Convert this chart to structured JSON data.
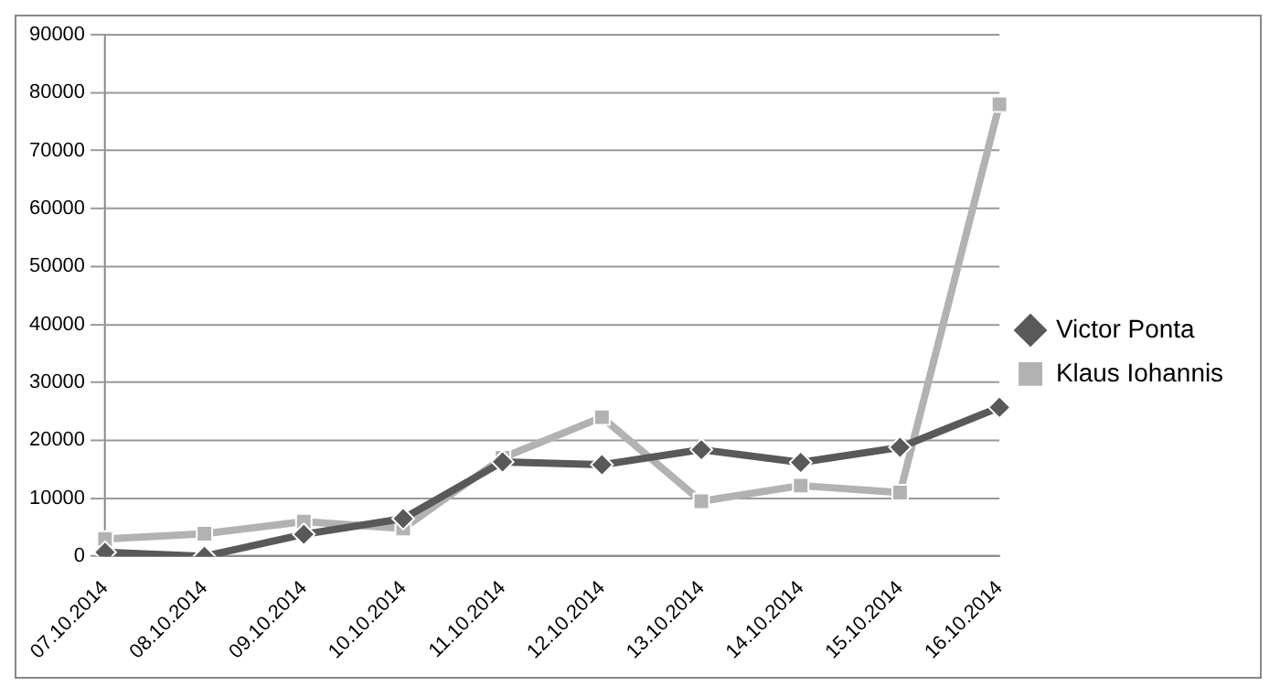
{
  "chart_data": {
    "type": "line",
    "categories": [
      "07.10.2014",
      "08.10.2014",
      "09.10.2014",
      "10.10.2014",
      "11.10.2014",
      "12.10.2014",
      "13.10.2014",
      "14.10.2014",
      "15.10.2014",
      "16.10.2014"
    ],
    "series": [
      {
        "name": "Victor Ponta",
        "color": "#595959",
        "marker": "diamond",
        "values": [
          700,
          0,
          3800,
          6500,
          16300,
          15800,
          18400,
          16200,
          18800,
          25700
        ]
      },
      {
        "name": "Klaus Iohannis",
        "color": "#b2b2b2",
        "marker": "square",
        "values": [
          3000,
          3900,
          6000,
          4800,
          17000,
          24000,
          9500,
          12200,
          11000,
          78000
        ]
      }
    ],
    "ylim": [
      0,
      90000
    ],
    "yticks": [
      0,
      10000,
      20000,
      30000,
      40000,
      50000,
      60000,
      70000,
      80000,
      90000
    ],
    "grid": "y",
    "legend": "right",
    "line_style": "solid"
  }
}
